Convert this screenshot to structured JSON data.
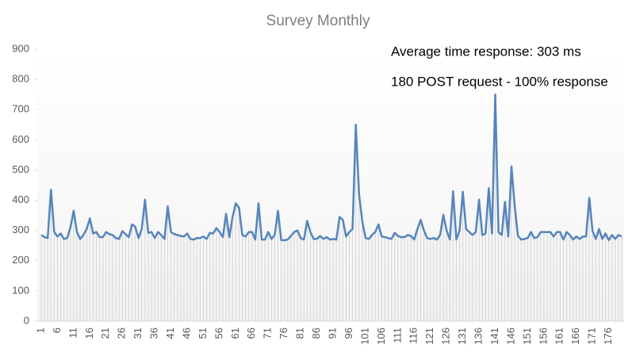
{
  "chart_data": {
    "type": "line",
    "title": "Survey Monthly",
    "annotations": [
      "Average time response: 303 ms",
      "180 POST request - 100% response"
    ],
    "categories": [
      1,
      null,
      null,
      null,
      null,
      6,
      null,
      null,
      null,
      null,
      11,
      null,
      null,
      null,
      null,
      16,
      null,
      null,
      null,
      null,
      21,
      null,
      null,
      null,
      null,
      26,
      null,
      null,
      null,
      null,
      31,
      null,
      null,
      null,
      null,
      36,
      null,
      null,
      null,
      null,
      41,
      null,
      null,
      null,
      null,
      46,
      null,
      null,
      null,
      null,
      51,
      null,
      null,
      null,
      null,
      56,
      null,
      null,
      null,
      null,
      61,
      null,
      null,
      null,
      null,
      66,
      null,
      null,
      null,
      null,
      71,
      null,
      null,
      null,
      null,
      76,
      null,
      null,
      null,
      null,
      81,
      null,
      null,
      null,
      null,
      86,
      null,
      null,
      null,
      null,
      91,
      null,
      null,
      null,
      null,
      96,
      null,
      null,
      null,
      null,
      101,
      null,
      null,
      null,
      null,
      106,
      null,
      null,
      null,
      null,
      111,
      null,
      null,
      null,
      null,
      116,
      null,
      null,
      null,
      null,
      121,
      null,
      null,
      null,
      null,
      126,
      null,
      null,
      null,
      null,
      131,
      null,
      null,
      null,
      null,
      136,
      null,
      null,
      null,
      null,
      141,
      null,
      null,
      null,
      null,
      146,
      null,
      null,
      null,
      null,
      151,
      null,
      null,
      null,
      null,
      156,
      null,
      null,
      null,
      null,
      161,
      null,
      null,
      null,
      null,
      166,
      null,
      null,
      null,
      null,
      171,
      null,
      null,
      null,
      null,
      176,
      null,
      null,
      null,
      null
    ],
    "values": [
      285,
      278,
      275,
      435,
      295,
      280,
      290,
      272,
      275,
      310,
      365,
      295,
      272,
      285,
      305,
      340,
      290,
      295,
      278,
      278,
      295,
      288,
      285,
      275,
      272,
      298,
      288,
      278,
      320,
      312,
      275,
      305,
      402,
      292,
      295,
      275,
      295,
      285,
      272,
      380,
      295,
      288,
      285,
      282,
      280,
      290,
      272,
      270,
      275,
      275,
      280,
      272,
      292,
      290,
      308,
      295,
      278,
      355,
      278,
      345,
      390,
      375,
      285,
      280,
      295,
      295,
      270,
      390,
      270,
      270,
      295,
      272,
      285,
      365,
      268,
      268,
      270,
      282,
      295,
      300,
      275,
      270,
      332,
      295,
      272,
      272,
      282,
      272,
      278,
      270,
      272,
      270,
      345,
      335,
      280,
      295,
      305,
      650,
      420,
      330,
      275,
      272,
      285,
      295,
      320,
      280,
      278,
      275,
      272,
      292,
      282,
      278,
      278,
      285,
      282,
      270,
      305,
      335,
      300,
      275,
      272,
      275,
      270,
      285,
      352,
      300,
      270,
      430,
      270,
      300,
      428,
      305,
      295,
      285,
      295,
      402,
      285,
      290,
      440,
      290,
      750,
      295,
      285,
      395,
      280,
      512,
      380,
      282,
      270,
      272,
      275,
      295,
      275,
      278,
      295,
      295,
      295,
      295,
      280,
      295,
      295,
      270,
      295,
      285,
      270,
      280,
      272,
      280,
      280,
      408,
      298,
      272,
      305,
      272,
      290,
      268,
      285,
      272,
      285,
      280
    ],
    "color": "#5585bb",
    "drop_line_color": "#d4d4d4",
    "ylim": [
      0,
      900
    ],
    "yticks": [
      0,
      100,
      200,
      300,
      400,
      500,
      600,
      700,
      800,
      900
    ]
  }
}
